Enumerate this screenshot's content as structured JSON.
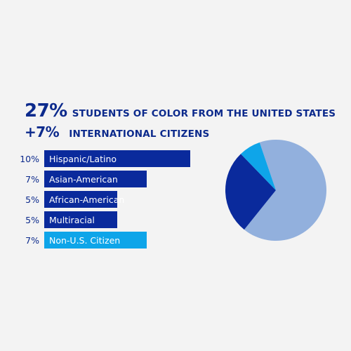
{
  "headline": {
    "stat1_value": "27%",
    "stat1_text": "STUDENTS OF COLOR FROM THE UNITED STATES",
    "stat2_value": "+7%",
    "stat2_text": "INTERNATIONAL CITIZENS"
  },
  "colors": {
    "dark_blue": "#0c2a8c",
    "bar_blue": "#0a2a9c",
    "light_blue": "#0ea5e9",
    "pie_rest": "#92b0dd"
  },
  "chart_data": [
    {
      "type": "bar",
      "orientation": "horizontal",
      "categories": [
        "Hispanic/Latino",
        "Asian-American",
        "African-American",
        "Multiracial",
        "Non-U.S. Citizen"
      ],
      "values": [
        10,
        7,
        5,
        5,
        7
      ],
      "value_labels": [
        "10%",
        "7%",
        "5%",
        "5%",
        "7%"
      ],
      "bar_colors": [
        "#0a2a9c",
        "#0a2a9c",
        "#0a2a9c",
        "#0a2a9c",
        "#0ea5e9"
      ]
    },
    {
      "type": "pie",
      "slices": [
        {
          "value": 66,
          "color": "#92b0dd"
        },
        {
          "value": 27,
          "color": "#0a2a9c"
        },
        {
          "value": 7,
          "color": "#0ea5e9"
        }
      ]
    }
  ]
}
